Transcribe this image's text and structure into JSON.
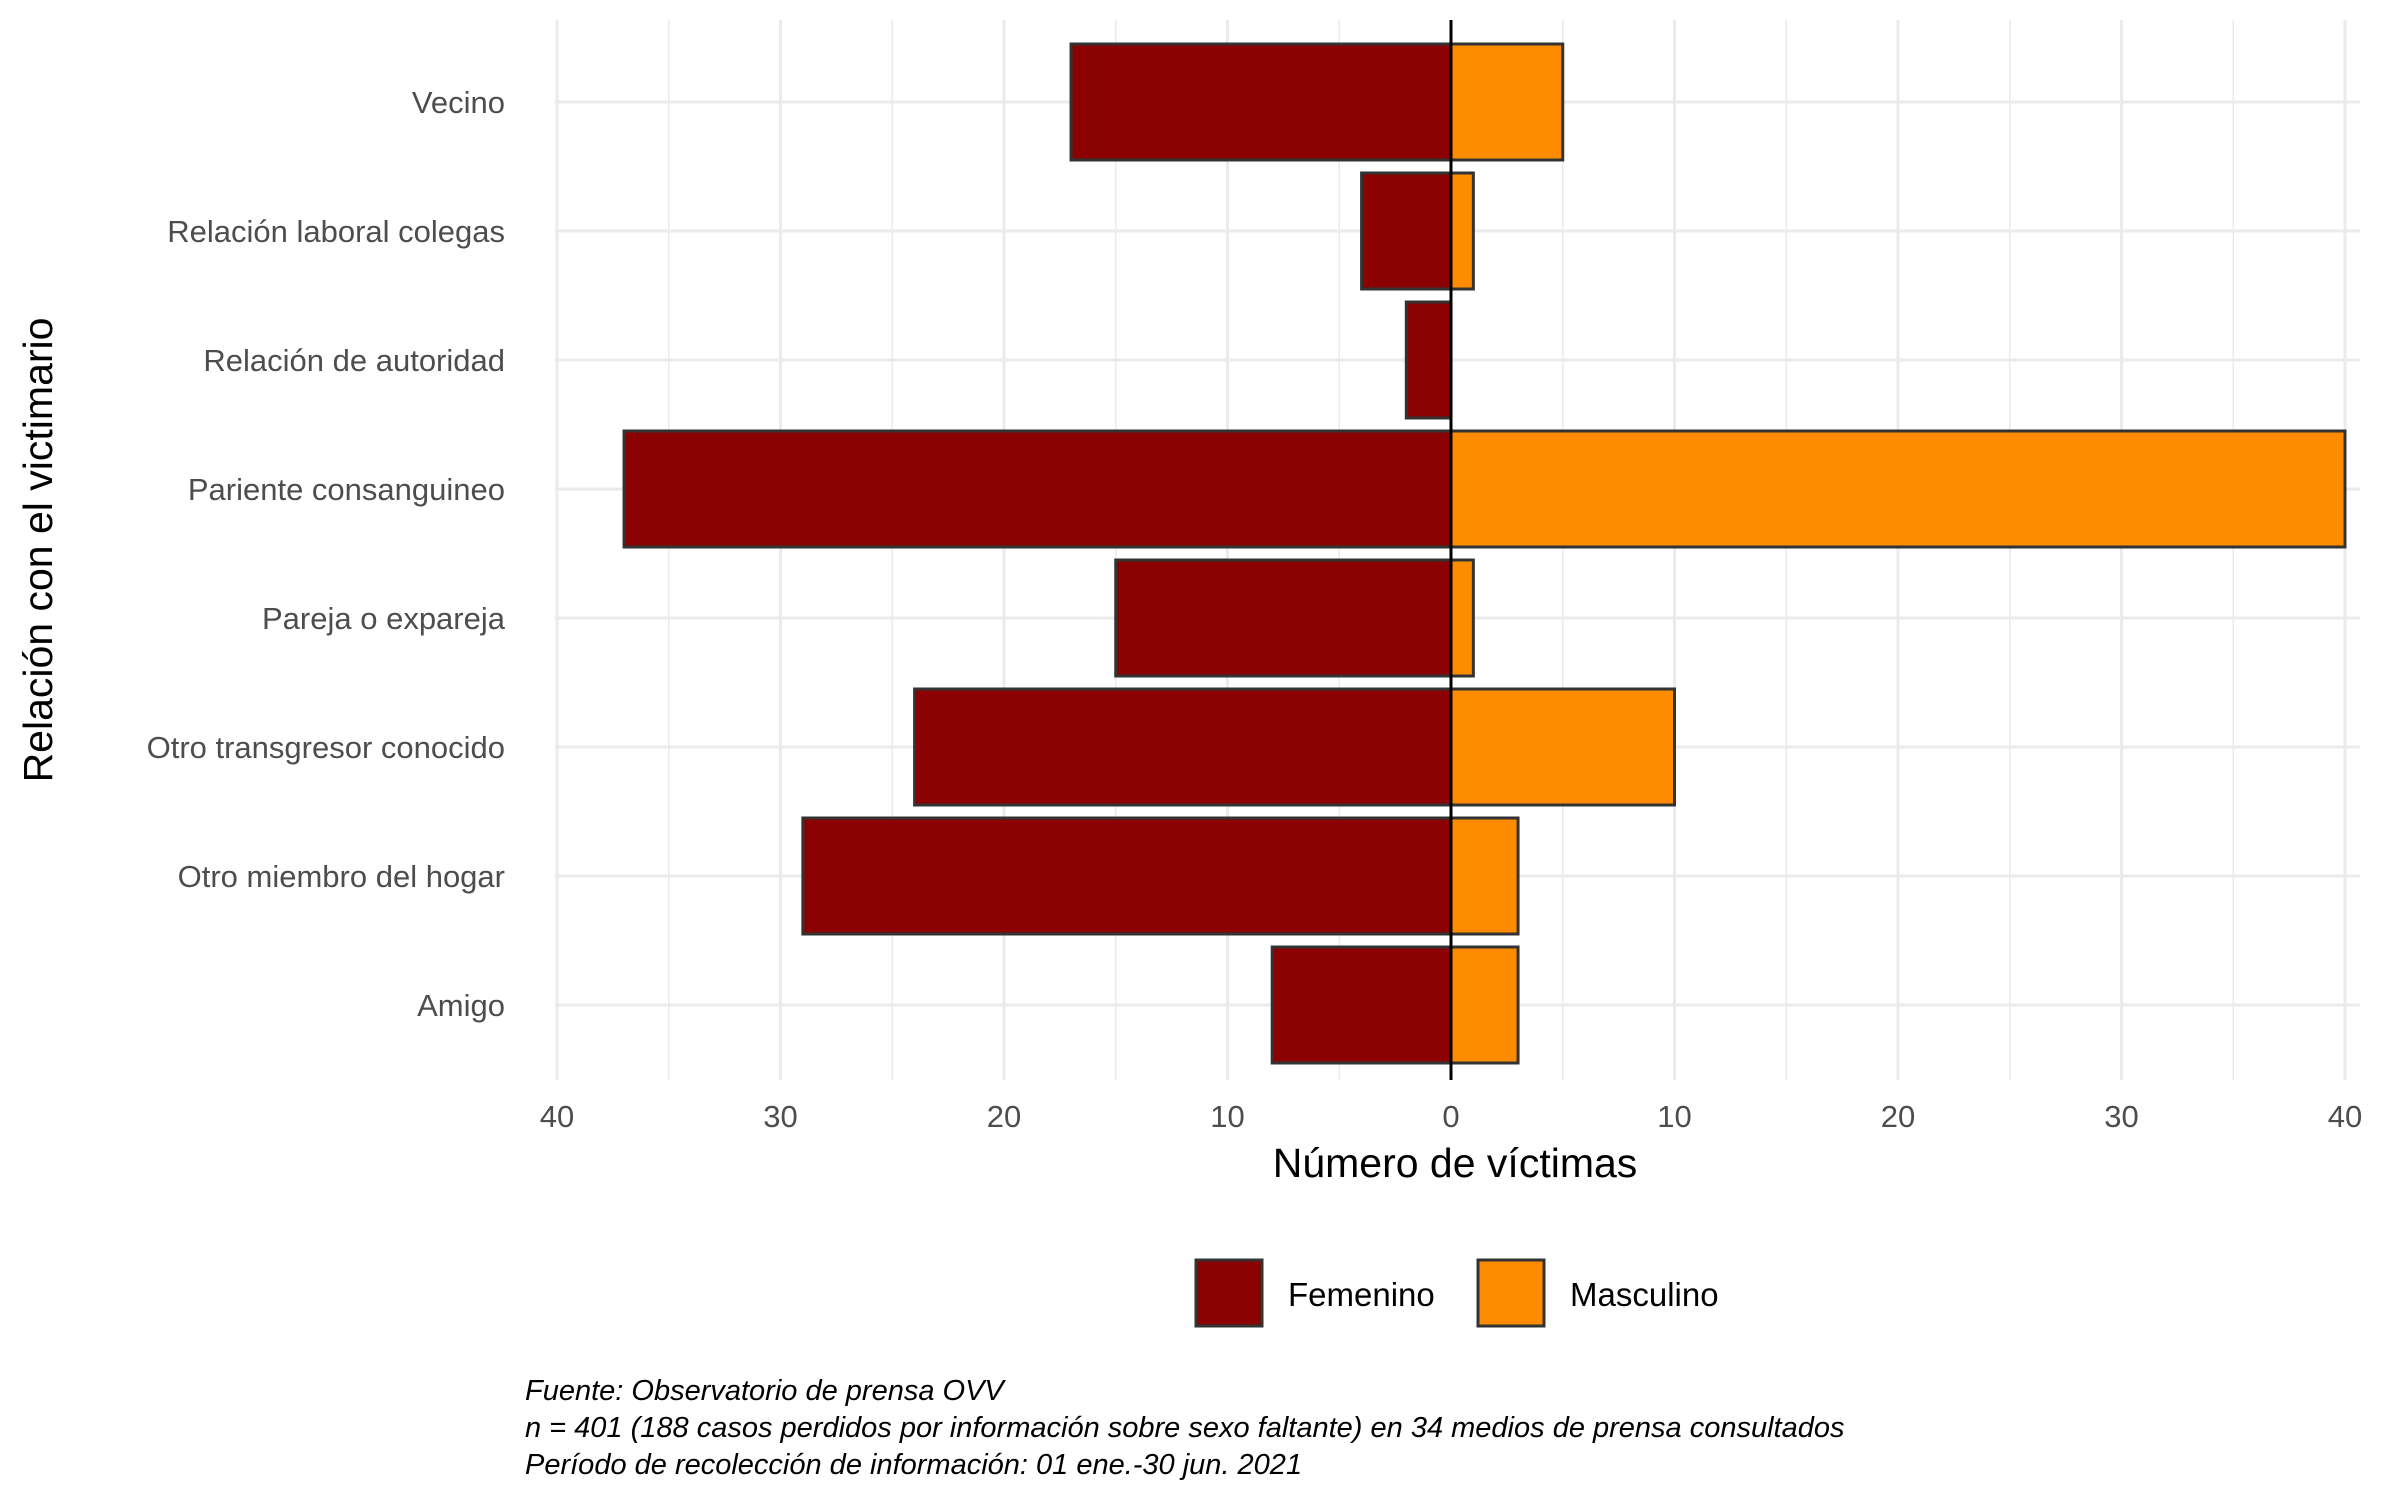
{
  "colors": {
    "femenino": "#8B0000",
    "masculino": "#FF8C00",
    "bar_outline": "#333333",
    "grid": "#EBEBEB",
    "zero_line": "#000000"
  },
  "chart_data": {
    "type": "bar",
    "orientation": "horizontal",
    "categories": [
      "Vecino",
      "Relación laboral colegas",
      "Relación de autoridad ",
      "Pariente consanguineo",
      "Pareja o expareja",
      "Otro transgresor conocido",
      "Otro miembro del hogar",
      "Amigo"
    ],
    "series": [
      {
        "name": "Femenino",
        "values": [
          17,
          4,
          2,
          37,
          15,
          24,
          29,
          8
        ]
      },
      {
        "name": "Masculino",
        "values": [
          5,
          1,
          0,
          40,
          1,
          10,
          3,
          3
        ]
      }
    ],
    "xlabel": "Número de víctimas",
    "ylabel": "Relación con el victimario",
    "xlim": [
      -40,
      40
    ],
    "x_ticks": [
      -40,
      -30,
      -20,
      -10,
      0,
      10,
      20,
      30,
      40
    ],
    "x_tick_labels": [
      "40",
      "30",
      "20",
      "10",
      "0",
      "10",
      "20",
      "30",
      "40"
    ],
    "grid": true,
    "legend_position": "bottom"
  },
  "caption": {
    "line1": "Fuente: Observatorio de prensa OVV",
    "line2": "n = 401 (188 casos perdidos por información sobre sexo faltante) en 34 medios de prensa consultados",
    "line3": "Período de recolección de información: 01 ene.-30 jun. 2021"
  }
}
